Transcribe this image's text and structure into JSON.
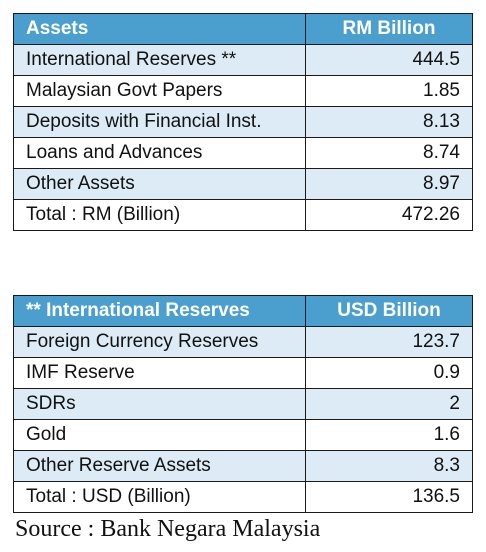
{
  "assets_table": {
    "header": {
      "label": "Assets",
      "unit": "RM Billion"
    },
    "rows": [
      {
        "label": "International Reserves  **",
        "value": "444.5"
      },
      {
        "label": "Malaysian Govt Papers",
        "value": "1.85"
      },
      {
        "label": "Deposits with Financial Inst.",
        "value": "8.13"
      },
      {
        "label": "Loans and Advances",
        "value": "8.74"
      },
      {
        "label": "Other Assets",
        "value": "8.97"
      },
      {
        "label": "Total :  RM (Billion)",
        "value": "472.26"
      }
    ]
  },
  "reserves_table": {
    "header": {
      "label": "**  International Reserves",
      "unit": "USD Billion"
    },
    "rows": [
      {
        "label": "Foreign Currency Reserves",
        "value": "123.7"
      },
      {
        "label": "IMF Reserve",
        "value": "0.9"
      },
      {
        "label": "SDRs",
        "value": "2"
      },
      {
        "label": "Gold",
        "value": "1.6"
      },
      {
        "label": "Other Reserve Assets",
        "value": "8.3"
      },
      {
        "label": "Total :  USD (Billion)",
        "value": "136.5"
      }
    ]
  },
  "source": "Source : Bank Negara Malaysia",
  "colors": {
    "header_bg": "#4a9fce",
    "header_text": "#ffffff",
    "band_bg": "#dcebf5",
    "row_bg": "#ffffff",
    "border": "#1a1a1a"
  }
}
